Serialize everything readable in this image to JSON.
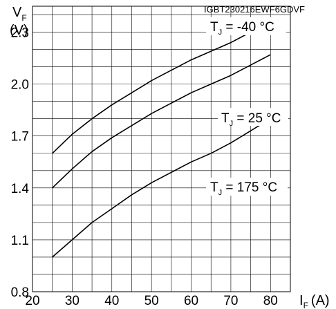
{
  "chart_data": {
    "type": "line",
    "title": "IGBT230216EWF6GDVF",
    "y_axis": {
      "symbol": "V",
      "subscript": "F",
      "unit": "(V)"
    },
    "x_axis": {
      "symbol": "I",
      "subscript": "F",
      "unit": "(A)"
    },
    "xlim": [
      20,
      85
    ],
    "ylim": [
      0.8,
      2.45
    ],
    "x_ticks": [
      20,
      30,
      40,
      50,
      60,
      70,
      80
    ],
    "y_ticks": [
      0.8,
      1.1,
      1.4,
      1.7,
      2.0,
      2.3
    ],
    "x_minor_step": 5,
    "y_minor_step": 0.1,
    "grid": true,
    "series": [
      {
        "name": "TJ = -40 °C",
        "label_main": "T",
        "label_sub": "J",
        "label_rest": " = -40 °C",
        "x": [
          25,
          30,
          35,
          40,
          45,
          50,
          55,
          60,
          65,
          70,
          75,
          80
        ],
        "y": [
          1.6,
          1.71,
          1.8,
          1.88,
          1.95,
          2.02,
          2.08,
          2.14,
          2.19,
          2.24,
          2.3,
          2.35
        ]
      },
      {
        "name": "TJ = 25 °C",
        "label_main": "T",
        "label_sub": "J",
        "label_rest": " = 25 °C",
        "x": [
          25,
          30,
          35,
          40,
          45,
          50,
          55,
          60,
          65,
          70,
          75,
          80
        ],
        "y": [
          1.4,
          1.51,
          1.61,
          1.69,
          1.76,
          1.83,
          1.89,
          1.95,
          2.0,
          2.05,
          2.11,
          2.17
        ]
      },
      {
        "name": "TJ = 175 °C",
        "label_main": "T",
        "label_sub": "J",
        "label_rest": " = 175 °C",
        "x": [
          25,
          30,
          35,
          40,
          45,
          50,
          55,
          60,
          65,
          70,
          75,
          80
        ],
        "y": [
          1.0,
          1.1,
          1.2,
          1.28,
          1.36,
          1.43,
          1.49,
          1.55,
          1.6,
          1.66,
          1.73,
          1.8
        ]
      }
    ]
  }
}
